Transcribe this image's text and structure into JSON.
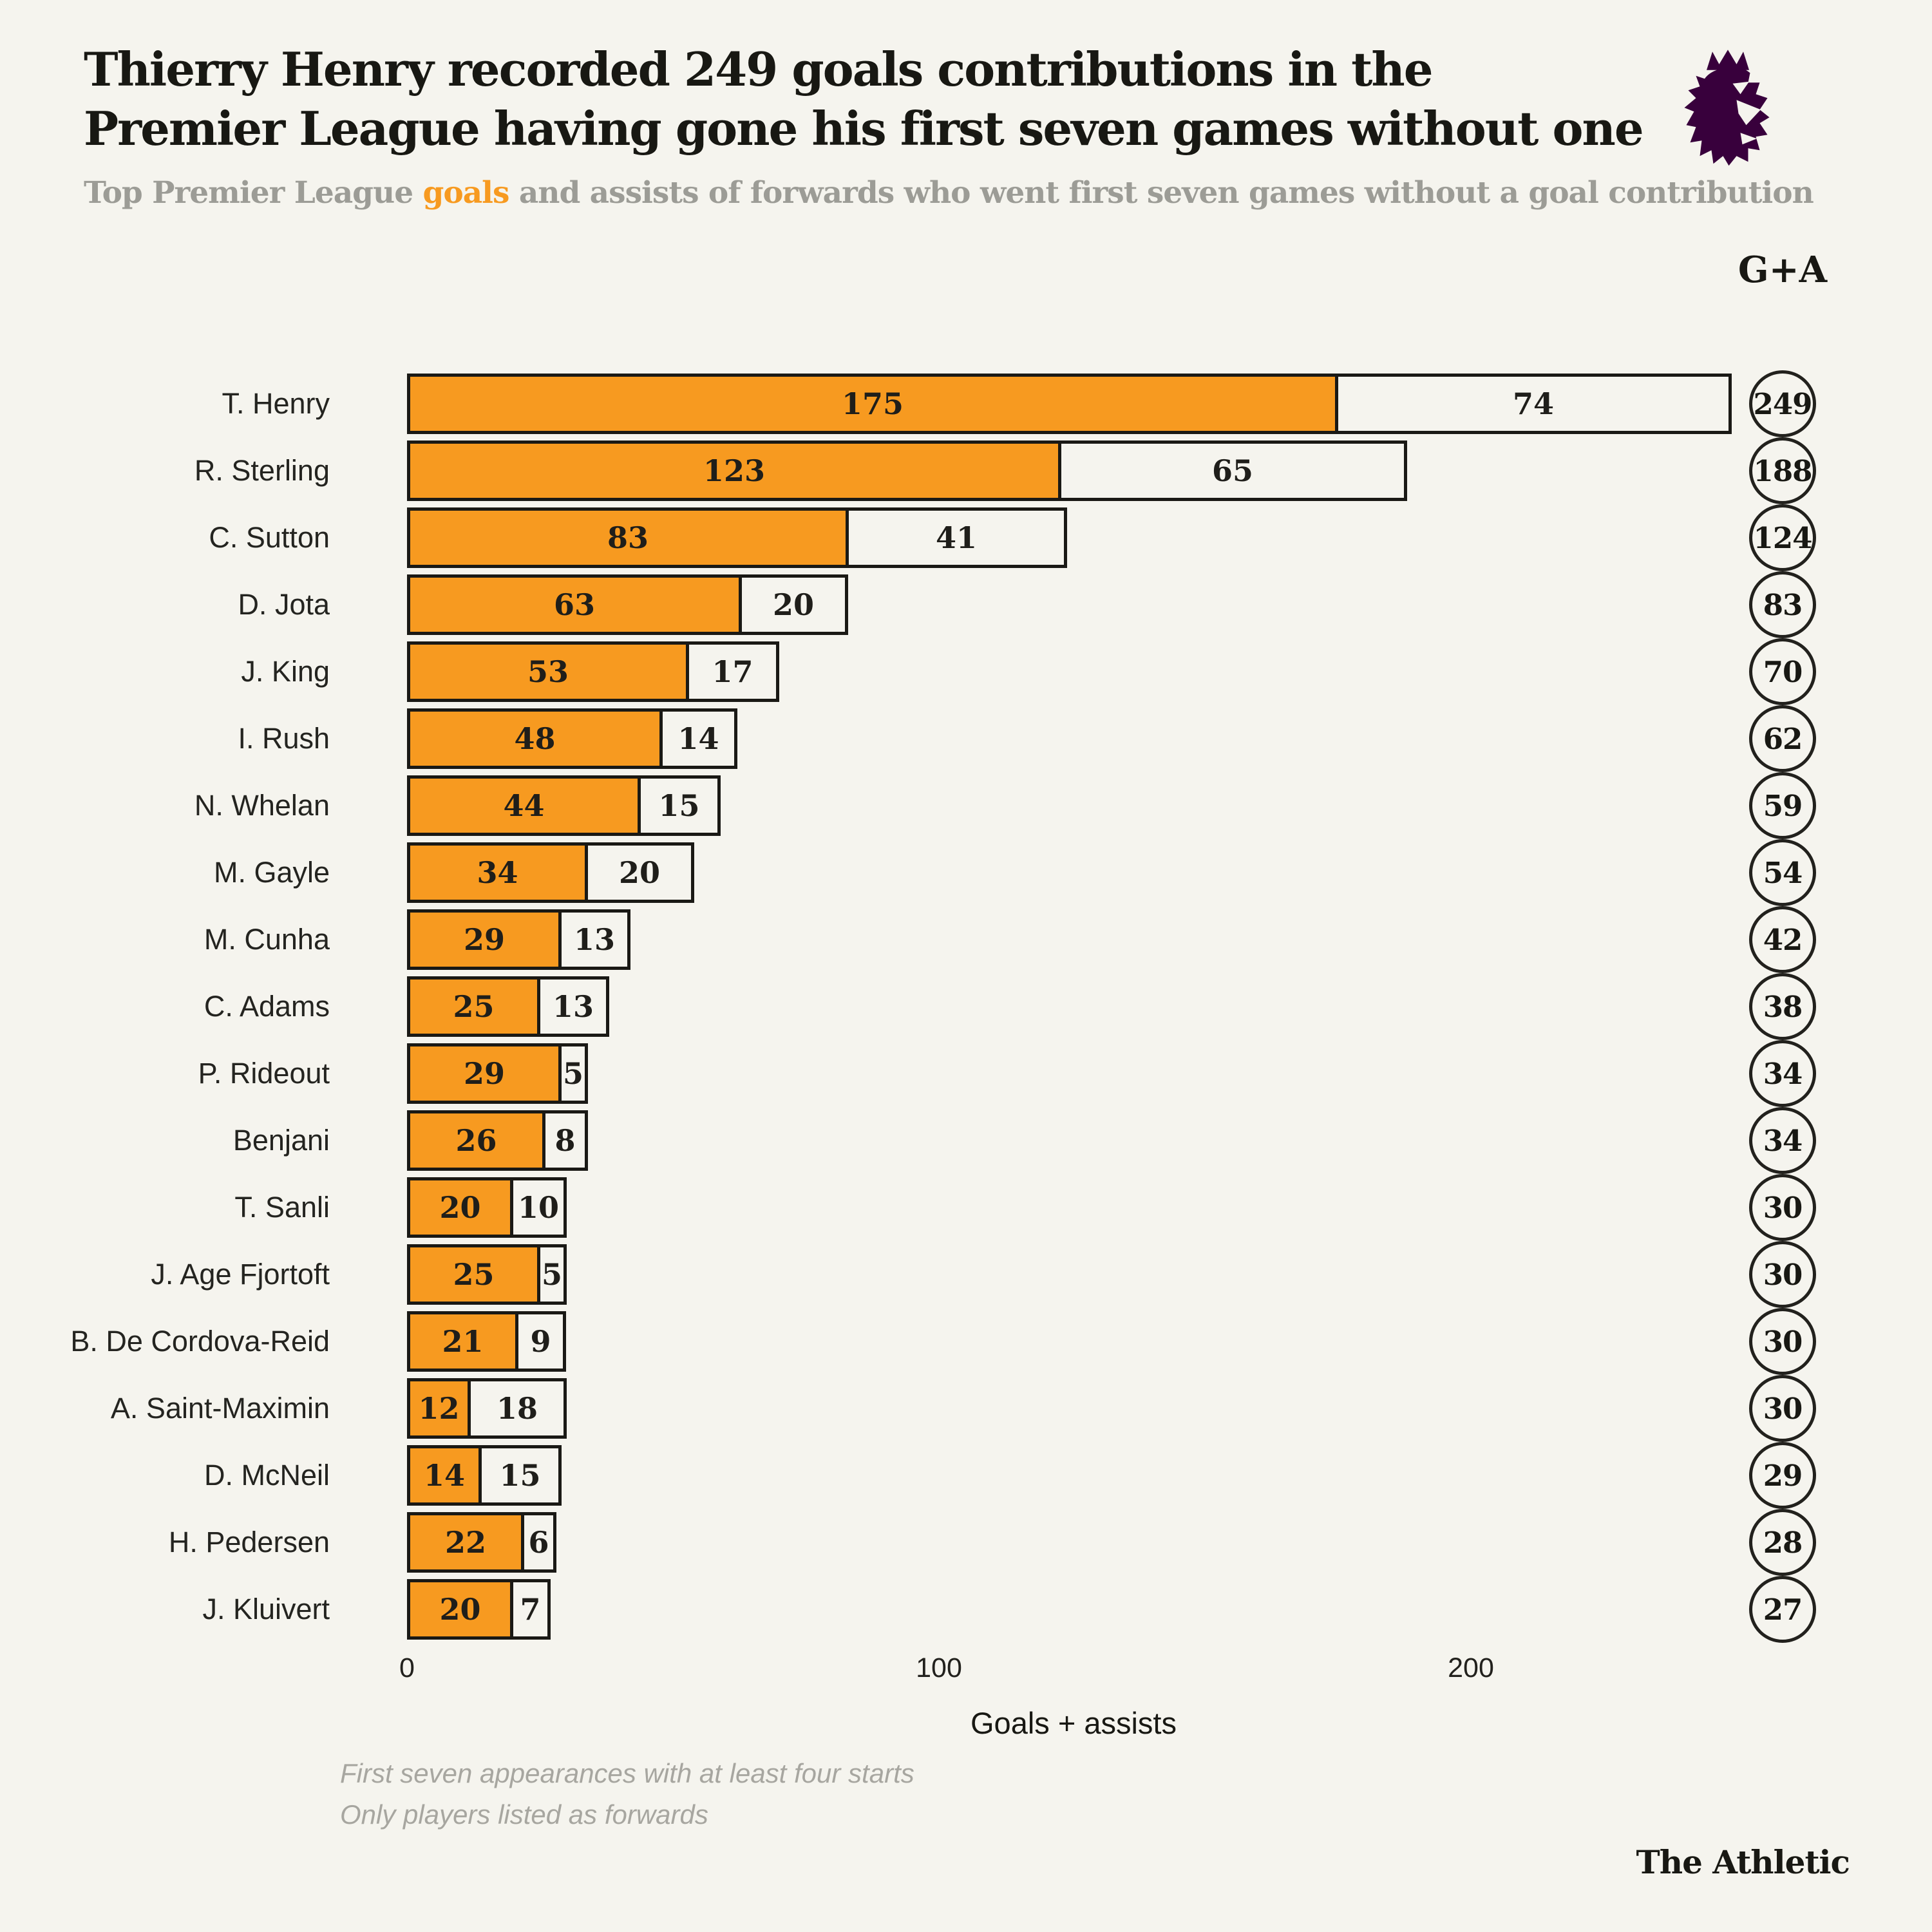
{
  "header": {
    "title_line1": "Thierry Henry recorded 249 goals contributions in the",
    "title_line2": "Premier League having gone his first seven games without one",
    "subtitle_prefix": "Top Premier League ",
    "subtitle_highlight": "goals",
    "subtitle_suffix": " and assists of forwards who went first seven games without a goal contribution",
    "logo": "premier-league-lion"
  },
  "chart_data": {
    "type": "bar",
    "orientation": "horizontal",
    "stacked": true,
    "column_header": "G+A",
    "xlabel": "Goals + assists",
    "x_ticks": [
      0,
      100,
      200
    ],
    "xlim": [
      0,
      260
    ],
    "grid": false,
    "series": [
      {
        "name": "Goals",
        "color": "#F79A20"
      },
      {
        "name": "Assists",
        "color": "#F5F4EE"
      }
    ],
    "players": [
      {
        "name": "T. Henry",
        "goals": 175,
        "assists": 74,
        "total": 249
      },
      {
        "name": "R. Sterling",
        "goals": 123,
        "assists": 65,
        "total": 188
      },
      {
        "name": "C. Sutton",
        "goals": 83,
        "assists": 41,
        "total": 124
      },
      {
        "name": "D. Jota",
        "goals": 63,
        "assists": 20,
        "total": 83
      },
      {
        "name": "J. King",
        "goals": 53,
        "assists": 17,
        "total": 70
      },
      {
        "name": "I. Rush",
        "goals": 48,
        "assists": 14,
        "total": 62
      },
      {
        "name": "N. Whelan",
        "goals": 44,
        "assists": 15,
        "total": 59
      },
      {
        "name": "M. Gayle",
        "goals": 34,
        "assists": 20,
        "total": 54
      },
      {
        "name": "M. Cunha",
        "goals": 29,
        "assists": 13,
        "total": 42
      },
      {
        "name": "C. Adams",
        "goals": 25,
        "assists": 13,
        "total": 38
      },
      {
        "name": "P. Rideout",
        "goals": 29,
        "assists": 5,
        "total": 34
      },
      {
        "name": "Benjani",
        "goals": 26,
        "assists": 8,
        "total": 34
      },
      {
        "name": "T. Sanli",
        "goals": 20,
        "assists": 10,
        "total": 30
      },
      {
        "name": "J. Age Fjortoft",
        "goals": 25,
        "assists": 5,
        "total": 30
      },
      {
        "name": "B. De Cordova-Reid",
        "goals": 21,
        "assists": 9,
        "total": 30
      },
      {
        "name": "A. Saint-Maximin",
        "goals": 12,
        "assists": 18,
        "total": 30
      },
      {
        "name": "D. McNeil",
        "goals": 14,
        "assists": 15,
        "total": 29
      },
      {
        "name": "H. Pedersen",
        "goals": 22,
        "assists": 6,
        "total": 28
      },
      {
        "name": "J. Kluivert",
        "goals": 20,
        "assists": 7,
        "total": 27
      }
    ]
  },
  "footnotes": [
    "First seven appearances with at least four starts",
    "Only players listed as forwards"
  ],
  "branding": {
    "source": "The Athletic"
  },
  "colors": {
    "background": "#F5F4EE",
    "goals_orange": "#F79A20",
    "assists_fill": "#F5F4EE",
    "outline": "#1A1915",
    "title_text": "#181813",
    "subtitle_gray": "#9C9C96",
    "footnote_gray": "#A7A6A0",
    "premier_league_purple": "#38003C"
  }
}
